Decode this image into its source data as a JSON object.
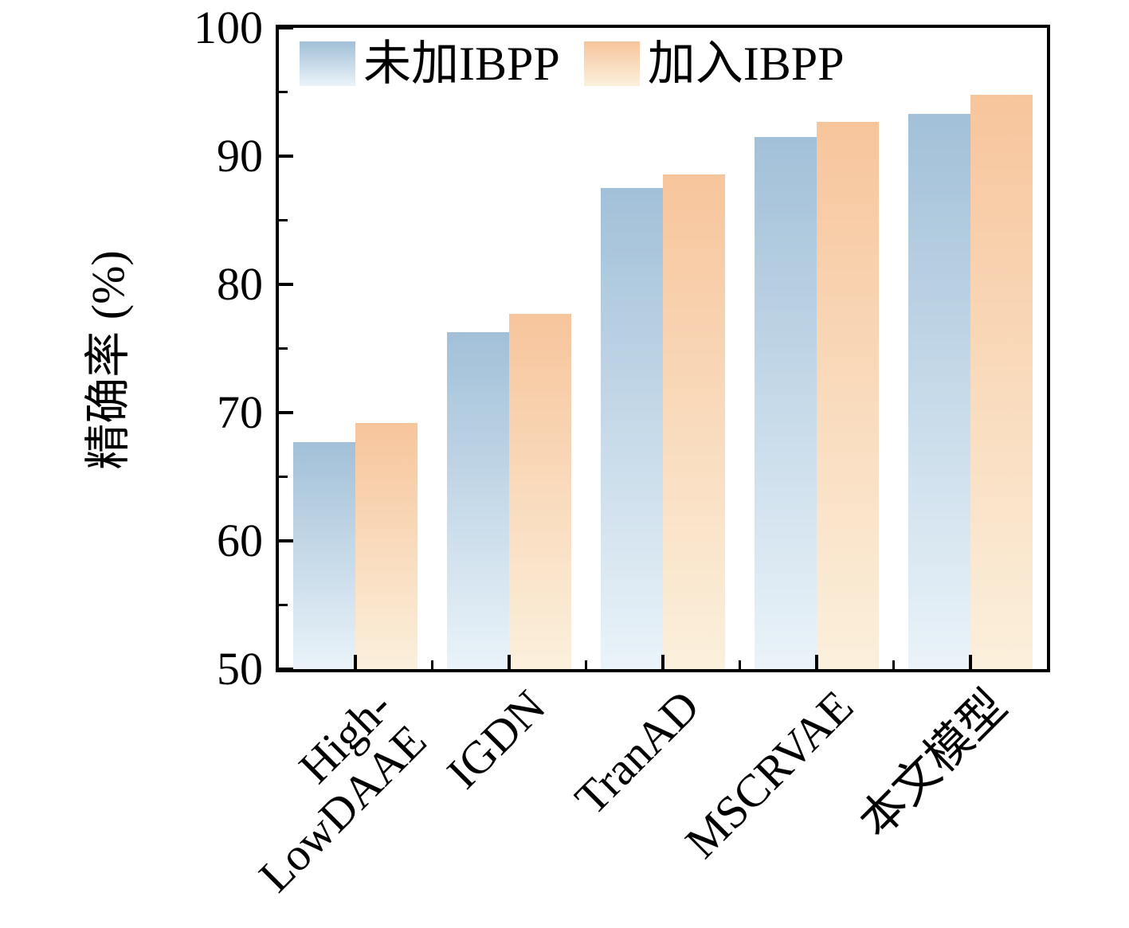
{
  "chart_data": {
    "type": "bar",
    "title": "",
    "xlabel": "",
    "ylabel": "精确率 (%)",
    "ylim": [
      50,
      100
    ],
    "y_major_ticks": [
      50,
      60,
      70,
      80,
      90,
      100
    ],
    "y_minor_ticks": [
      55,
      65,
      75,
      85,
      95
    ],
    "grid": false,
    "legend_position": "upper-left-inside",
    "categories": [
      [
        "High-",
        "LowDAAE"
      ],
      "IGDN",
      "TranAD",
      "MSCRVAE",
      "本文模型"
    ],
    "series": [
      {
        "name": "未加IBPP",
        "values": [
          67.7,
          76.3,
          87.5,
          91.5,
          93.3
        ],
        "color_top": "#a2c0d8",
        "color_bottom": "#eaf3f9"
      },
      {
        "name": "加入IBPP",
        "values": [
          69.2,
          77.7,
          88.6,
          92.7,
          94.8
        ],
        "color_top": "#f7c59c",
        "color_bottom": "#fbf0dc"
      }
    ],
    "frame_color": "#000000"
  }
}
